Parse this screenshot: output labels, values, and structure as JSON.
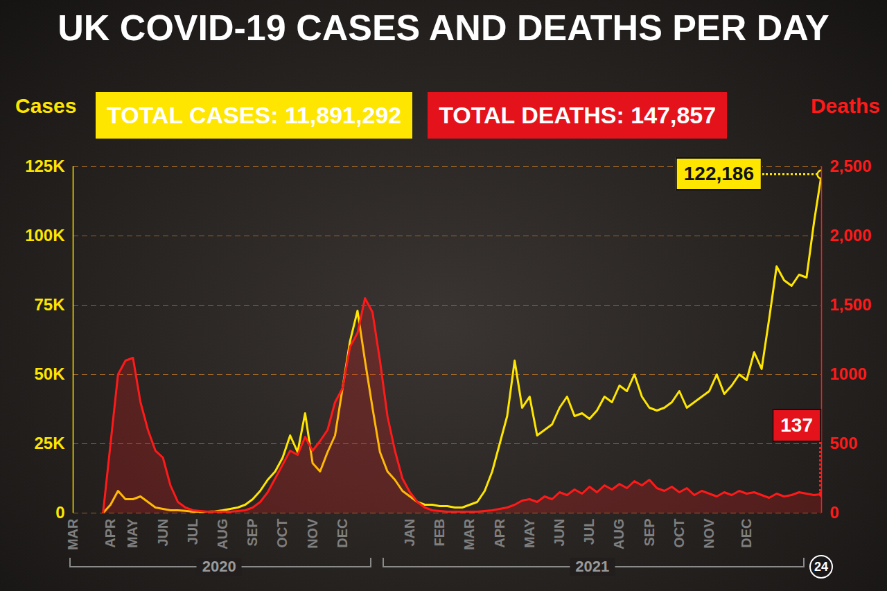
{
  "chart_data": {
    "type": "line",
    "title": "UK COVID-19 CASES AND DEATHS PER DAY",
    "totals": [
      {
        "label": "TOTAL CASES: 11,891,292",
        "color": "#ffe600"
      },
      {
        "label": "TOTAL DEATHS: 147,857",
        "color": "#e3121b"
      }
    ],
    "y_label": "Cases",
    "y2_label": "Deaths",
    "year_labels": [
      "2020",
      "2021"
    ],
    "end_day_label": "24",
    "categories": [
      "MAR",
      null,
      null,
      null,
      null,
      "APR",
      null,
      null,
      "MAY",
      null,
      null,
      null,
      "JUN",
      null,
      null,
      null,
      "JUL",
      null,
      null,
      null,
      "AUG",
      null,
      null,
      null,
      "SEP",
      null,
      null,
      null,
      "OCT",
      null,
      null,
      null,
      "NOV",
      null,
      null,
      null,
      "DEC",
      null,
      null,
      null,
      null,
      null,
      null,
      null,
      null,
      "JAN",
      null,
      null,
      null,
      "FEB",
      null,
      null,
      null,
      "MAR",
      null,
      null,
      null,
      "APR",
      null,
      null,
      null,
      "MAY",
      null,
      null,
      null,
      "JUN",
      null,
      null,
      null,
      "JUL",
      null,
      null,
      null,
      "AUG",
      null,
      null,
      null,
      "SEP",
      null,
      null,
      null,
      "OCT",
      null,
      null,
      null,
      "NOV",
      null,
      null,
      null,
      null,
      "DEC",
      null,
      null,
      null,
      null,
      null,
      null,
      null,
      null,
      null,
      null
    ],
    "series": [
      {
        "name": "Cases",
        "color": "#ffe600",
        "axis": "y",
        "values": [
          null,
          null,
          null,
          null,
          0,
          3000,
          8000,
          5000,
          5000,
          6000,
          4000,
          2000,
          1500,
          1000,
          1000,
          800,
          500,
          500,
          500,
          600,
          1000,
          1500,
          2000,
          3000,
          5000,
          8000,
          12000,
          15000,
          20000,
          28000,
          22000,
          36000,
          18000,
          15000,
          22000,
          28000,
          45000,
          62000,
          73000,
          55000,
          38000,
          22000,
          15000,
          12000,
          8000,
          6000,
          4000,
          3000,
          3000,
          2500,
          2500,
          2000,
          2000,
          3000,
          4000,
          8000,
          15000,
          25000,
          35000,
          55000,
          38000,
          42000,
          28000,
          30000,
          32000,
          38000,
          42000,
          35000,
          36000,
          34000,
          37000,
          42000,
          40000,
          46000,
          44000,
          50000,
          42000,
          38000,
          37000,
          38000,
          40000,
          44000,
          38000,
          40000,
          42000,
          44000,
          50000,
          43000,
          46000,
          50000,
          48000,
          58000,
          52000,
          70000,
          89000,
          84000,
          82000,
          86000,
          85000,
          105000,
          122186
        ],
        "value_labels": [
          null,
          null,
          null,
          null,
          null,
          null,
          null,
          null,
          null,
          null,
          null,
          null,
          null,
          null,
          null,
          null,
          null,
          null,
          null,
          null,
          null,
          null,
          null,
          null,
          null,
          null,
          null,
          null,
          null,
          null,
          null,
          null,
          null,
          null,
          null,
          null,
          null,
          null,
          null,
          null,
          null,
          null,
          null,
          null,
          null,
          null,
          null,
          null,
          null,
          null,
          null,
          null,
          null,
          null,
          null,
          null,
          null,
          null,
          null,
          null,
          null,
          null,
          null,
          null,
          null,
          null,
          null,
          null,
          null,
          null,
          null,
          null,
          null,
          null,
          null,
          null,
          null,
          null,
          null,
          null,
          null,
          null,
          null,
          null,
          null,
          null,
          null,
          null,
          null,
          null,
          null,
          null,
          null,
          null,
          null,
          null,
          null,
          null,
          null,
          null,
          "122,186"
        ]
      },
      {
        "name": "Deaths",
        "color": "#ff1a1a",
        "axis": "y2",
        "values": [
          null,
          null,
          null,
          null,
          0,
          500,
          1000,
          1100,
          1120,
          800,
          600,
          450,
          400,
          200,
          80,
          40,
          20,
          15,
          10,
          10,
          10,
          10,
          15,
          20,
          40,
          80,
          150,
          250,
          350,
          450,
          420,
          550,
          450,
          520,
          600,
          800,
          900,
          1200,
          1300,
          1550,
          1450,
          1100,
          700,
          450,
          250,
          150,
          80,
          40,
          20,
          15,
          10,
          10,
          10,
          10,
          10,
          15,
          20,
          30,
          40,
          60,
          90,
          100,
          80,
          120,
          100,
          150,
          130,
          170,
          140,
          190,
          150,
          200,
          170,
          210,
          180,
          230,
          200,
          240,
          180,
          160,
          190,
          150,
          180,
          130,
          160,
          140,
          120,
          150,
          130,
          160,
          140,
          150,
          130,
          110,
          140,
          120,
          130,
          150,
          140,
          130,
          137
        ],
        "value_labels": [
          null,
          null,
          null,
          null,
          null,
          null,
          null,
          null,
          null,
          null,
          null,
          null,
          null,
          null,
          null,
          null,
          null,
          null,
          null,
          null,
          null,
          null,
          null,
          null,
          null,
          null,
          null,
          null,
          null,
          null,
          null,
          null,
          null,
          null,
          null,
          null,
          null,
          null,
          null,
          null,
          null,
          null,
          null,
          null,
          null,
          null,
          null,
          null,
          null,
          null,
          null,
          null,
          null,
          null,
          null,
          null,
          null,
          null,
          null,
          null,
          null,
          null,
          null,
          null,
          null,
          null,
          null,
          null,
          null,
          null,
          null,
          null,
          null,
          null,
          null,
          null,
          null,
          null,
          null,
          null,
          null,
          null,
          null,
          null,
          null,
          null,
          null,
          null,
          null,
          null,
          null,
          null,
          null,
          null,
          null,
          null,
          null,
          null,
          null,
          null,
          "137"
        ]
      }
    ],
    "ylim": [
      0,
      125000
    ],
    "yticks": [
      0,
      {
        "value": 25000,
        "label": "25K"
      },
      {
        "value": 50000,
        "label": "50K"
      },
      {
        "value": 75000,
        "label": "75K"
      },
      {
        "value": 100000,
        "label": "100K"
      },
      {
        "value": 125000,
        "label": "125K"
      }
    ],
    "y2lim": [
      0,
      2500
    ],
    "y2ticks": [
      0,
      500,
      1000,
      {
        "value": 1500,
        "label": "1,500"
      },
      {
        "value": 2000,
        "label": "2,000"
      },
      {
        "value": 2500,
        "label": "2,500"
      }
    ],
    "grid": true
  }
}
